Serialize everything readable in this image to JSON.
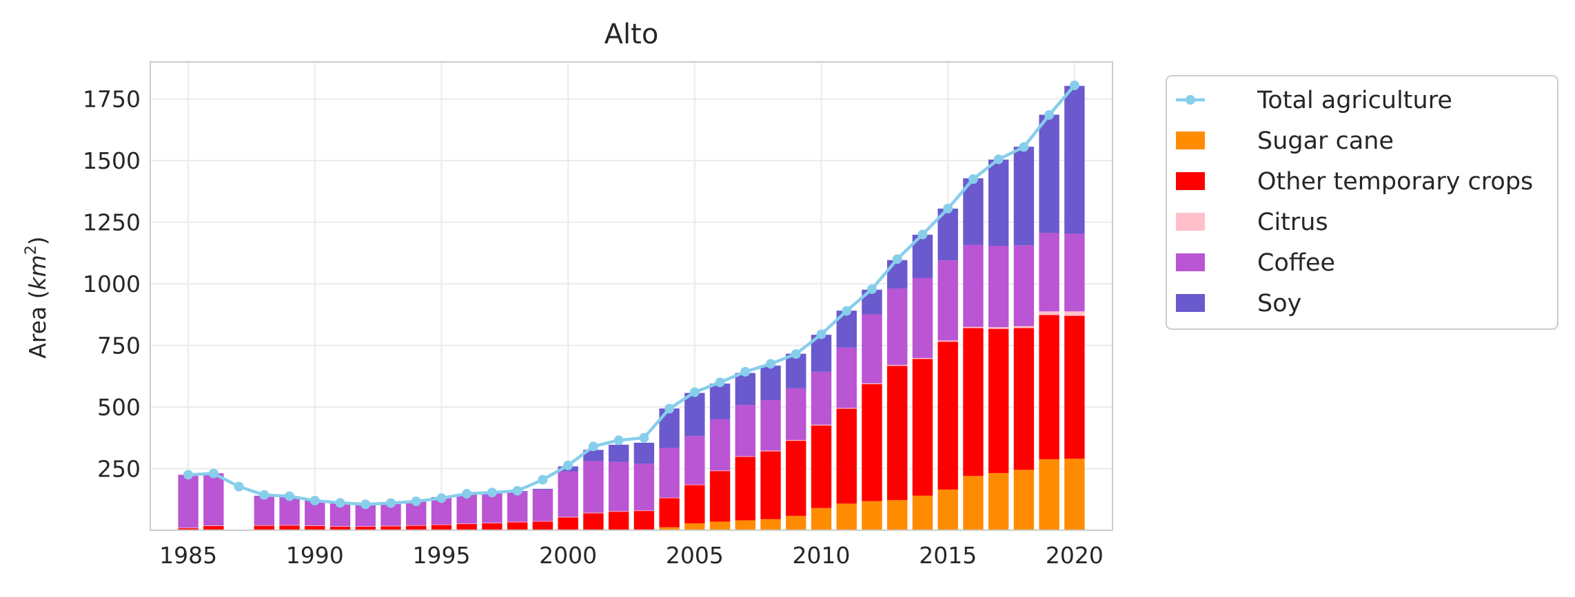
{
  "chart_data": {
    "type": "bar",
    "title": "Alto",
    "ylabel": "Area",
    "ylabel_unit": "km",
    "ylabel_unit_exp": "2",
    "xlabel": "",
    "xlim": [
      1983.5,
      2021.5
    ],
    "ylim": [
      0,
      1900
    ],
    "xticks": [
      1985,
      1990,
      1995,
      2000,
      2005,
      2010,
      2015,
      2020
    ],
    "yticks": [
      250,
      500,
      750,
      1000,
      1250,
      1500,
      1750
    ],
    "grid": true,
    "legend_position": "outside-right",
    "x": [
      1985,
      1986,
      1987,
      1988,
      1989,
      1990,
      1991,
      1992,
      1993,
      1994,
      1995,
      1996,
      1997,
      1998,
      1999,
      2000,
      2001,
      2002,
      2003,
      2004,
      2005,
      2006,
      2007,
      2008,
      2009,
      2010,
      2011,
      2012,
      2013,
      2014,
      2015,
      2016,
      2017,
      2018,
      2019,
      2020
    ],
    "series": [
      {
        "name": "Sugar cane",
        "color": "#ff8c00",
        "values": [
          2,
          2,
          0,
          2,
          2,
          2,
          2,
          2,
          2,
          2,
          2,
          2,
          2,
          2,
          2,
          2,
          2,
          2,
          3,
          12,
          28,
          35,
          40,
          45,
          58,
          90,
          108,
          118,
          122,
          140,
          165,
          220,
          232,
          245,
          288,
          290
        ]
      },
      {
        "name": "Other temporary crops",
        "color": "#ff0000",
        "values": [
          6,
          15,
          0,
          16,
          17,
          15,
          12,
          12,
          14,
          16,
          19,
          23,
          26,
          30,
          33,
          50,
          67,
          73,
          75,
          118,
          155,
          205,
          258,
          275,
          305,
          335,
          385,
          475,
          545,
          555,
          600,
          600,
          585,
          575,
          585,
          580
        ]
      },
      {
        "name": "Citrus",
        "color": "#ffc0cb",
        "values": [
          2,
          2,
          0,
          2,
          2,
          2,
          2,
          2,
          2,
          2,
          2,
          2,
          2,
          2,
          2,
          2,
          2,
          2,
          2,
          2,
          2,
          2,
          2,
          3,
          3,
          3,
          3,
          3,
          4,
          4,
          5,
          5,
          7,
          8,
          15,
          18
        ]
      },
      {
        "name": "Coffee",
        "color": "#ba55d3",
        "values": [
          215,
          212,
          0,
          118,
          113,
          98,
          92,
          88,
          91,
          96,
          108,
          118,
          120,
          122,
          128,
          185,
          210,
          200,
          190,
          202,
          197,
          208,
          208,
          205,
          210,
          215,
          245,
          280,
          310,
          325,
          325,
          333,
          330,
          328,
          318,
          315
        ]
      },
      {
        "name": "Soy",
        "color": "#6a5acd",
        "values": [
          0,
          0,
          0,
          2,
          3,
          3,
          3,
          3,
          3,
          3,
          3,
          3,
          3,
          3,
          3,
          20,
          45,
          70,
          85,
          160,
          175,
          145,
          130,
          140,
          140,
          150,
          150,
          100,
          115,
          175,
          210,
          270,
          350,
          400,
          480,
          600
        ]
      }
    ],
    "line": {
      "name": "Total agriculture",
      "color": "#87ceeb",
      "values": [
        225,
        230,
        177,
        143,
        138,
        120,
        111,
        105,
        110,
        117,
        130,
        148,
        153,
        160,
        205,
        263,
        340,
        365,
        375,
        493,
        560,
        600,
        643,
        675,
        715,
        795,
        890,
        978,
        1100,
        1200,
        1305,
        1425,
        1505,
        1555,
        1685,
        1805
      ]
    }
  }
}
